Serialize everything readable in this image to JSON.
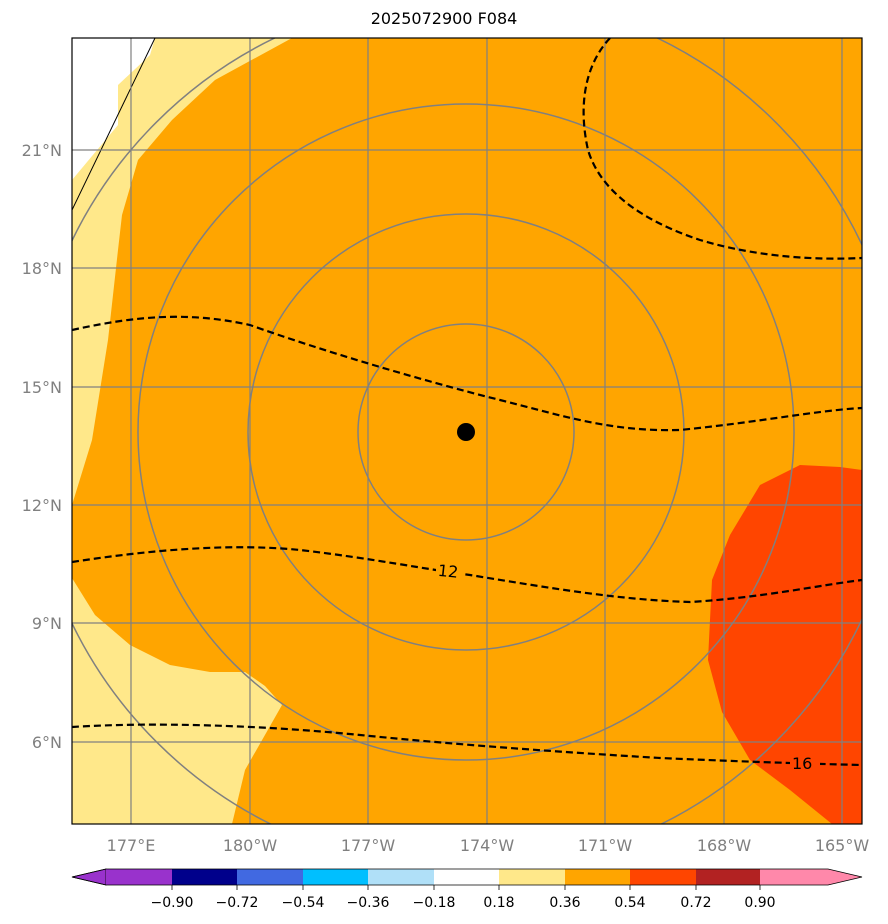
{
  "title": "2025072900 F084",
  "map": {
    "lon_ticks": [
      "177°E",
      "180°W",
      "177°W",
      "174°W",
      "171°W",
      "168°W",
      "165°W"
    ],
    "lat_ticks": [
      "21°N",
      "18°N",
      "15°N",
      "12°N",
      "9°N",
      "6°N"
    ],
    "contour_labels": [
      "12",
      "16"
    ],
    "colors": {
      "ocean_fill": "#ffa500",
      "light_fill": "#ffe88a",
      "hot_fill": "#ff4500",
      "gridline": "#808080",
      "contour": "#000000",
      "land": "#ffffff"
    }
  },
  "colorbar": {
    "tick_labels": [
      "−0.90",
      "−0.72",
      "−0.54",
      "−0.36",
      "−0.18",
      "0.18",
      "0.36",
      "0.54",
      "0.72",
      "0.90"
    ],
    "colors": [
      "#9932cc",
      "#00008b",
      "#4169e1",
      "#00bfff",
      "#b0e0f8",
      "#ffffff",
      "#ffe88a",
      "#ffa500",
      "#ff4500",
      "#b22222",
      "#ff88aa"
    ]
  }
}
